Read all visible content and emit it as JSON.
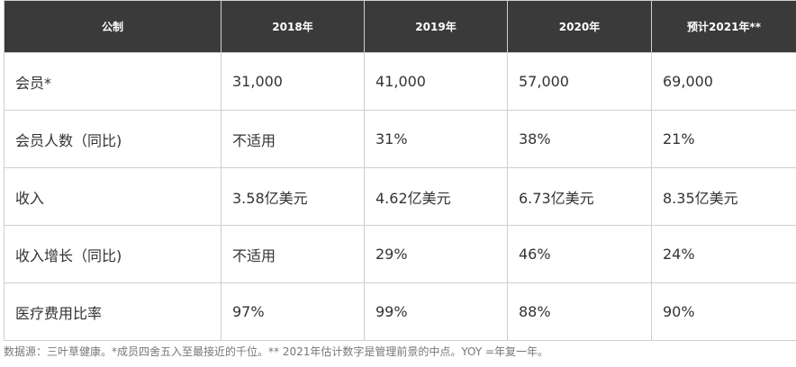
{
  "table": {
    "headers": [
      "公制",
      "2018年",
      "2019年",
      "2020年",
      "预计2021年**"
    ],
    "rows": [
      [
        "会员*",
        "31,000",
        "41,000",
        "57,000",
        "69,000"
      ],
      [
        "会员人数（同比)",
        "不适用",
        "31%",
        "38%",
        "21%"
      ],
      [
        "收入",
        "3.58亿美元",
        "4.62亿美元",
        "6.73亿美元",
        "8.35亿美元"
      ],
      [
        "收入增长（同比)",
        "不适用",
        "29%",
        "46%",
        "24%"
      ],
      [
        "医疗费用比率",
        "97%",
        "99%",
        "88%",
        "90%"
      ]
    ]
  },
  "footnote": "数据源：三叶草健康。*成员四舍五入至最接近的千位。** 2021年估计数字是管理前景的中点。YOY =年复一年。",
  "colors": {
    "header_bg": "#3a3a3a",
    "header_text": "#ffffff",
    "border": "#cfcfcf",
    "body_text": "#333333",
    "footnote_text": "#777777"
  }
}
